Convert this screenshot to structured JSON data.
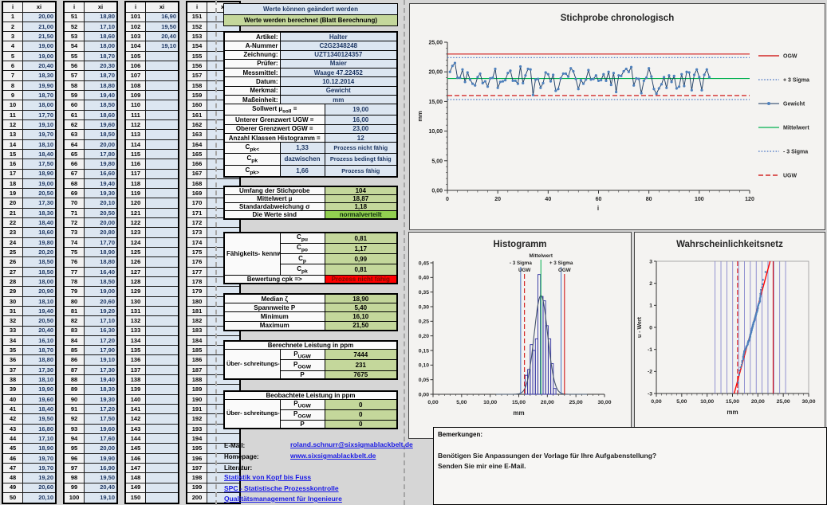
{
  "banner": {
    "editable": "Werte können geändert werden",
    "calculated": "Werte werden berechnet (Blatt Berechnung)"
  },
  "data_table": {
    "header_i": "i",
    "header_xi": "xi",
    "groups": [
      {
        "start": 1,
        "values": [
          "20,00",
          "21,00",
          "21,50",
          "19,00",
          "19,00",
          "20,40",
          "18,30",
          "19,90",
          "18,70",
          "18,00",
          "17,70",
          "19,10",
          "19,70",
          "18,10",
          "18,40",
          "17,50",
          "18,90",
          "19,00",
          "20,50",
          "17,30",
          "18,30",
          "18,40",
          "18,60",
          "19,80",
          "20,20",
          "18,50",
          "18,50",
          "18,00",
          "20,90",
          "18,10",
          "19,40",
          "20,50",
          "20,40",
          "16,10",
          "18,70",
          "18,80",
          "17,30",
          "18,10",
          "19,90",
          "19,60",
          "18,40",
          "19,50",
          "16,80",
          "17,10",
          "18,90",
          "19,70",
          "19,70",
          "19,20",
          "20,60",
          "20,10"
        ]
      },
      {
        "start": 51,
        "values": [
          "18,80",
          "17,10",
          "18,60",
          "18,00",
          "18,70",
          "20,30",
          "18,70",
          "18,80",
          "19,40",
          "18,50",
          "18,60",
          "19,60",
          "18,50",
          "20,00",
          "17,80",
          "19,80",
          "16,60",
          "19,40",
          "19,30",
          "20,10",
          "20,50",
          "20,00",
          "20,80",
          "17,70",
          "18,90",
          "18,80",
          "16,40",
          "18,50",
          "19,00",
          "20,60",
          "19,20",
          "17,10",
          "16,30",
          "17,20",
          "17,90",
          "19,10",
          "17,30",
          "19,40",
          "18,30",
          "19,30",
          "17,20",
          "17,50",
          "19,60",
          "17,60",
          "20,00",
          "19,90",
          "16,90",
          "19,50",
          "20,40",
          "19,10"
        ]
      },
      {
        "start": 101,
        "values": [
          "16,90",
          "19,50",
          "20,40",
          "19,10"
        ]
      },
      {
        "start": 151,
        "values": []
      }
    ]
  },
  "info_table": {
    "rows": [
      {
        "label": "Artikel:",
        "value": "Halter"
      },
      {
        "label": "A-Nummer",
        "value": "C2G2348248"
      },
      {
        "label": "Zeichnung:",
        "value": "UZT1340124357"
      },
      {
        "label": "Prüfer:",
        "value": "Maier"
      },
      {
        "label": "Messmittel:",
        "value": "Waage 47.22452"
      },
      {
        "label": "Datum:",
        "value": "10.12.2014"
      },
      {
        "label": "Merkmal:",
        "value": "Gewicht"
      },
      {
        "label": "Maßeinheit:",
        "value": "mm"
      }
    ],
    "limit_rows": [
      {
        "label_pre": "Sollwert µ",
        "label_sub": "soll",
        "label_post": " =",
        "value": "19,00"
      },
      {
        "label_pre": "Unterer Grenzwert UGW =",
        "label_sub": "",
        "label_post": "",
        "value": "16,00"
      },
      {
        "label_pre": "Oberer Grenzwert OGW =",
        "label_sub": "",
        "label_post": "",
        "value": "23,00"
      },
      {
        "label_pre": "Anzahl Klassen Histogramm =",
        "label_sub": "",
        "label_post": "",
        "value": "12"
      }
    ],
    "cpk_rows": [
      {
        "sym_pre": "C",
        "sym_sub": "pk<",
        "mid": "1,33",
        "value": "Prozess nicht fähig"
      },
      {
        "sym_pre": "C",
        "sym_sub": "pk",
        "mid": "dazwischen",
        "value": "Prozess bedingt fähig"
      },
      {
        "sym_pre": "C",
        "sym_sub": "pk>",
        "mid": "1,66",
        "value": "Prozess fähig"
      }
    ]
  },
  "stats": {
    "rows": [
      {
        "label": "Umfang der Stichprobe",
        "value": "104"
      },
      {
        "label": "Mittelwert µ",
        "value": "18,87"
      },
      {
        "label": "Standardabweichung σ",
        "value": "1,18"
      },
      {
        "label": "Die Werte sind",
        "value": "normalverteilt",
        "highlight": true
      }
    ]
  },
  "capability": {
    "group_label": "Fähigkeits- kennwerte",
    "rows": [
      {
        "sym_pre": "C",
        "sym_sub": "pu",
        "value": "0,81"
      },
      {
        "sym_pre": "C",
        "sym_sub": "po",
        "value": "1,17"
      },
      {
        "sym_pre": "C",
        "sym_sub": "p",
        "value": "0,99"
      },
      {
        "sym_pre": "C",
        "sym_sub": "pk",
        "value": "0,81"
      }
    ],
    "verdict_label": "Bewertung cpk =>",
    "verdict": "Prozess nicht fähig"
  },
  "summary": {
    "rows": [
      {
        "label": "Median ζ",
        "value": "18,90"
      },
      {
        "label": "Spannweite P",
        "value": "5,40"
      },
      {
        "label": "Minimum",
        "value": "16,10"
      },
      {
        "label": "Maximum",
        "value": "21,50"
      }
    ]
  },
  "calculated_ppm": {
    "title": "Berechnete Leistung in ppm",
    "side_label": "Über- schreitungs- anteil",
    "rows": [
      {
        "pre": "P",
        "sub": "UGW",
        "value": "7444"
      },
      {
        "pre": "P",
        "sub": "OGW",
        "value": "231"
      },
      {
        "pre": "P",
        "sub": "",
        "value": "7675"
      }
    ]
  },
  "observed_ppm": {
    "title": "Beobachtete Leistung in ppm",
    "side_label": "Über- schreitungs- anteil",
    "rows": [
      {
        "pre": "P",
        "sub": "UGW",
        "value": "0"
      },
      {
        "pre": "P",
        "sub": "OGW",
        "value": "0"
      },
      {
        "pre": "P",
        "sub": "",
        "value": "0"
      }
    ]
  },
  "contact": {
    "email_label": "E-Mail:",
    "email": "roland.schnurr@sixsigmablackbelt.de",
    "homepage_label": "Homepage:",
    "homepage": "www.sixsigmablackbelt.de",
    "literature_label": "Literatur:",
    "links": [
      "Statistik von Kopf bis Fuss",
      "SPC - Statistische Prozesskontrolle",
      "Qualitätsmanagement für Ingenieure"
    ]
  },
  "remarks": {
    "title": "Bemerkungen:",
    "lines": [
      "Benötigen Sie Anpassungen der Vorlage für Ihre Aufgabenstellung?",
      "Senden Sie mir eine E-Mail."
    ]
  },
  "colors": {
    "editable_bg": "#dce6f1",
    "calculated_bg": "#c4d79b",
    "normal_bg": "#92d050",
    "alert_bg": "#ff0000",
    "limit_line": "#cc0000",
    "sigma_line": "#4472c4",
    "mean_line": "#00b050",
    "series_marker": "#4f81bd"
  },
  "chart_data": [
    {
      "type": "line",
      "title": "Stichprobe chronologisch",
      "xlabel": "i",
      "ylabel": "mm",
      "xlim": [
        0,
        120
      ],
      "ylim": [
        0,
        25
      ],
      "x_ticks": [
        0,
        20,
        40,
        60,
        80,
        100,
        120
      ],
      "y_tick_step": 5,
      "legend_position": "right",
      "series": [
        {
          "name": "OGW",
          "kind": "hline",
          "y": 23,
          "color": "#cc0000",
          "dash": "solid"
        },
        {
          "name": "+ 3 Sigma",
          "kind": "hline",
          "y": 22.41,
          "color": "#4472c4",
          "dash": "dotted"
        },
        {
          "name": "Gewicht",
          "kind": "points",
          "marker_color": "#4f81bd",
          "line_color": "#17375e",
          "values": [
            20,
            21,
            21.5,
            19,
            19,
            20.4,
            18.3,
            19.9,
            18.7,
            18,
            17.7,
            19.1,
            19.7,
            18.1,
            18.4,
            17.5,
            18.9,
            19,
            20.5,
            17.3,
            18.3,
            18.4,
            18.6,
            19.8,
            20.2,
            18.5,
            18.5,
            18,
            20.9,
            18.1,
            19.4,
            20.5,
            20.4,
            16.1,
            18.7,
            18.8,
            17.3,
            18.1,
            19.9,
            19.6,
            18.4,
            19.5,
            16.8,
            17.1,
            18.9,
            19.7,
            19.7,
            19.2,
            20.6,
            20.1,
            18.8,
            17.1,
            18.6,
            18,
            18.7,
            20.3,
            18.7,
            18.8,
            19.4,
            18.5,
            18.6,
            19.6,
            18.5,
            20,
            17.8,
            19.8,
            16.6,
            19.4,
            19.3,
            20.1,
            20.5,
            20,
            20.8,
            17.7,
            18.9,
            18.8,
            16.4,
            18.5,
            19,
            20.6,
            19.2,
            17.1,
            16.3,
            17.2,
            17.9,
            19.1,
            17.3,
            19.4,
            18.3,
            19.3,
            17.2,
            17.5,
            19.6,
            17.6,
            20,
            19.9,
            16.9,
            19.5,
            20.4,
            19.1,
            16.9,
            19.5,
            20.4,
            19.1
          ]
        },
        {
          "name": "Mittelwert",
          "kind": "hline",
          "y": 18.87,
          "color": "#00b050",
          "dash": "solid"
        },
        {
          "name": "- 3 Sigma",
          "kind": "hline",
          "y": 15.33,
          "color": "#4472c4",
          "dash": "dotted"
        },
        {
          "name": "UGW",
          "kind": "hline",
          "y": 16,
          "color": "#cc0000",
          "dash": "dashed"
        }
      ]
    },
    {
      "type": "bar",
      "title": "Histogramm",
      "xlabel": "mm",
      "ylabel": "",
      "xlim": [
        0,
        30
      ],
      "ylim": [
        0,
        0.45
      ],
      "bar_start": 16.1,
      "bar_width": 0.45,
      "values": [
        0.065,
        0.085,
        0.17,
        0.15,
        0.19,
        0.41,
        0.335,
        0.32,
        0.235,
        0.19,
        0.105,
        0.02
      ],
      "normal_curve": {
        "mean": 18.87,
        "sigma": 1.18
      },
      "vlines": [
        {
          "name": "- 3 Sigma",
          "x": 15.33,
          "color": "#4472c4",
          "dash": "solid"
        },
        {
          "name": "UGW",
          "x": 16,
          "color": "#cc0000",
          "dash": "dashed"
        },
        {
          "name": "Mittelwert",
          "x": 18.87,
          "color": "#00b050",
          "dash": "solid"
        },
        {
          "name": "+ 3 Sigma",
          "x": 22.41,
          "color": "#4472c4",
          "dash": "solid"
        },
        {
          "name": "OGW",
          "x": 23,
          "color": "#cc0000",
          "dash": "solid"
        }
      ]
    },
    {
      "type": "scatter",
      "title": "Wahrscheinlichkeitsnetz",
      "xlabel": "mm",
      "ylabel": "u - Wert",
      "xlim": [
        0,
        30
      ],
      "ylim": [
        -3,
        3
      ],
      "fit": {
        "mean": 18.87,
        "sigma": 1.18,
        "color": "#ff0000"
      },
      "grid_lines": {
        "start": 11.57,
        "step": 1.157,
        "count": 13
      },
      "vlines": [
        {
          "name": "UGW",
          "x": 16,
          "color": "#e00000",
          "dash": "dashed"
        },
        {
          "name": "OGW",
          "x": 23,
          "color": "#e00000",
          "dash": "solid"
        }
      ]
    }
  ]
}
